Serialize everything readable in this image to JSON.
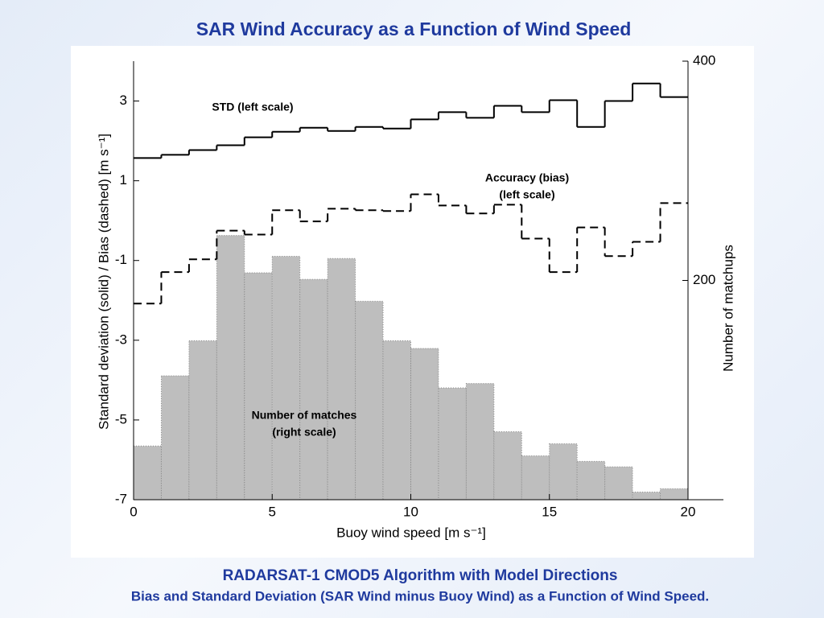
{
  "header": {
    "title": "SAR Wind Accuracy as a Function of Wind Speed"
  },
  "chart_data": {
    "type": "histogram",
    "x_label": "Buoy wind speed [m s⁻¹]",
    "y_label": "Standard deviation (solid) / Bias (dashed) [m s⁻¹]",
    "y2_label": "Number of matchups",
    "bins": [
      0,
      1,
      2,
      3,
      4,
      5,
      6,
      7,
      8,
      9,
      10,
      11,
      12,
      13,
      14,
      15,
      16,
      17,
      18,
      19,
      20
    ],
    "xlim": [
      0,
      20
    ],
    "xticks": [
      0,
      5,
      10,
      15,
      20
    ],
    "ylim": [
      -7,
      4
    ],
    "yticks": [
      -7,
      -5,
      -3,
      -1,
      1,
      3
    ],
    "y2lim": [
      0,
      400
    ],
    "y2ticks": [
      200,
      400
    ],
    "series": [
      {
        "name": "STD",
        "color": "#000000",
        "line_style": "solid",
        "values": [
          1.57,
          1.65,
          1.77,
          1.89,
          2.09,
          2.23,
          2.33,
          2.25,
          2.35,
          2.31,
          2.54,
          2.72,
          2.58,
          2.88,
          2.72,
          3.02,
          2.35,
          3.0,
          3.44,
          3.1
        ]
      },
      {
        "name": "Bias",
        "color": "#000000",
        "line_style": "dashed",
        "values": [
          -2.08,
          -1.29,
          -0.97,
          -0.25,
          -0.35,
          0.26,
          -0.02,
          0.3,
          0.26,
          0.24,
          0.66,
          0.38,
          0.18,
          0.4,
          -0.45,
          -1.29,
          -0.17,
          -0.89,
          -0.53,
          0.44
        ]
      },
      {
        "name": "Number of matches",
        "color": "#bebebe",
        "line_style": "filled",
        "axis": "y2",
        "values": [
          49,
          113,
          145,
          241,
          207,
          222,
          201,
          220,
          181,
          145,
          138,
          102,
          106,
          62,
          40,
          51,
          35,
          30,
          7,
          10
        ]
      }
    ],
    "annotations": [
      [
        "STD (left scale)"
      ],
      [
        "Accuracy (bias)",
        "(left scale)"
      ],
      [
        "Number of matches",
        "(right scale)"
      ]
    ]
  },
  "footer": {
    "line1": "RADARSAT-1 CMOD5 Algorithm with Model Directions",
    "line2": "Bias and Standard Deviation (SAR Wind minus Buoy Wind) as a Function of Wind Speed."
  }
}
